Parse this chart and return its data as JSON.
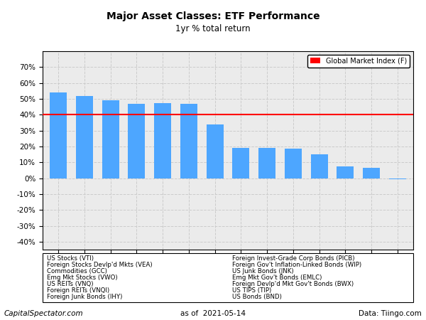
{
  "title": "Major Asset Classes: ETF Performance",
  "subtitle": "1yr % total return",
  "categories": [
    "VTI",
    "VEA",
    "GCC",
    "VWO",
    "VNQ",
    "VNQI",
    "IHY",
    "PICB",
    "WIP",
    "JNK",
    "EMLC",
    "BWX",
    "TIP",
    "BND"
  ],
  "values": [
    54.2,
    51.8,
    49.1,
    47.0,
    47.2,
    46.8,
    33.8,
    19.2,
    18.9,
    18.4,
    15.0,
    7.2,
    6.3,
    -0.5
  ],
  "bar_color": "#4da6ff",
  "global_market_index": 40.0,
  "gmi_color": "#ff0000",
  "gmi_label": "Global Market Index (F)",
  "ylim": [
    -45,
    80
  ],
  "yticks": [
    -40,
    -30,
    -20,
    -10,
    0,
    10,
    20,
    30,
    40,
    50,
    60,
    70
  ],
  "legend_left": [
    "US Stocks (VTI)",
    "Foreign Stocks Devlp'd Mkts (VEA)",
    "Commodities (GCC)",
    "Emg Mkt Stocks (VWO)",
    "US REITs (VNQ)",
    "Foreign REITs (VNQI)",
    "Foreign Junk Bonds (IHY)"
  ],
  "legend_right": [
    "Foreign Invest-Grade Corp Bonds (PICB)",
    "Foreign Gov't Inflation-Linked Bonds (WIP)",
    "US Junk Bonds (JNK)",
    "Emg Mkt Gov't Bonds (EMLC)",
    "Foreign Devlp'd Mkt Gov't Bonds (BWX)",
    "US TIPS (TIP)",
    "US Bonds (BND)"
  ],
  "footer_left": "CapitalSpectator.com",
  "footer_center": "as of  2021-05-14",
  "footer_right": "Data: Tiingo.com",
  "background_color": "#ffffff",
  "grid_color": "#cccccc",
  "axis_bg_color": "#ebebeb"
}
